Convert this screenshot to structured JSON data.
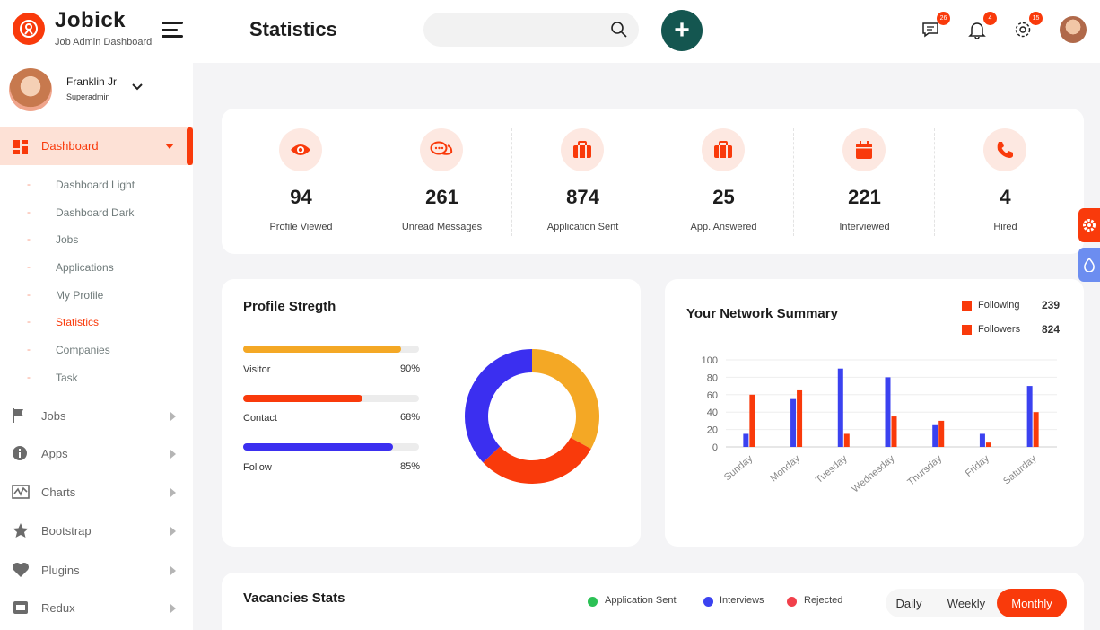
{
  "app": {
    "brand_title": "Jobick",
    "brand_subtitle": "Job Admin Dashboard",
    "page_title": "Statistics"
  },
  "header": {
    "search_placeholder": "",
    "add_label": "+",
    "icons": [
      {
        "name": "chat-icon",
        "badge": "26"
      },
      {
        "name": "bell-icon",
        "badge": "4"
      },
      {
        "name": "gear-icon",
        "badge": "15"
      }
    ]
  },
  "profile": {
    "name": "Franklin Jr",
    "role": "Superadmin"
  },
  "sidebar": {
    "active": {
      "label": "Dashboard",
      "icon": "dashboard-grid-icon"
    },
    "subitems": [
      {
        "label": "Dashboard Light",
        "active": false
      },
      {
        "label": "Dashboard Dark",
        "active": false
      },
      {
        "label": "Jobs",
        "active": false
      },
      {
        "label": "Applications",
        "active": false
      },
      {
        "label": "My Profile",
        "active": false
      },
      {
        "label": "Statistics",
        "active": true
      },
      {
        "label": "Companies",
        "active": false
      },
      {
        "label": "Task",
        "active": false
      }
    ],
    "items": [
      {
        "label": "Jobs",
        "icon": "flag-icon"
      },
      {
        "label": "Apps",
        "icon": "info-icon"
      },
      {
        "label": "Charts",
        "icon": "chart-line-icon"
      },
      {
        "label": "Bootstrap",
        "icon": "star-icon"
      },
      {
        "label": "Plugins",
        "icon": "heart-icon"
      },
      {
        "label": "Redux",
        "icon": "card-icon"
      }
    ]
  },
  "stats": [
    {
      "value": "94",
      "label": "Profile Viewed",
      "icon": "eye-icon"
    },
    {
      "value": "261",
      "label": "Unread Messages",
      "icon": "chat-bubbles-icon"
    },
    {
      "value": "874",
      "label": "Application Sent",
      "icon": "briefcase-icon"
    },
    {
      "value": "25",
      "label": "App. Answered",
      "icon": "briefcase-icon"
    },
    {
      "value": "221",
      "label": "Interviewed",
      "icon": "calendar-icon"
    },
    {
      "value": "4",
      "label": "Hired",
      "icon": "phone-icon"
    }
  ],
  "profile_strength": {
    "title": "Profile Stregth",
    "bars": [
      {
        "label": "Visitor",
        "pct": "90%",
        "value": 0.9,
        "color": "#f4a825"
      },
      {
        "label": "Contact",
        "pct": "68%",
        "value": 0.68,
        "color": "#f93a0b"
      },
      {
        "label": "Follow",
        "pct": "85%",
        "value": 0.85,
        "color": "#3b2ff0"
      }
    ],
    "donut": [
      {
        "value": 0.33,
        "color": "#f4a825"
      },
      {
        "value": 0.3,
        "color": "#f93a0b"
      },
      {
        "value": 0.37,
        "color": "#3b2ff0"
      }
    ]
  },
  "network": {
    "title": "Your Network Summary",
    "legend": [
      {
        "label": "Following",
        "value": "239"
      },
      {
        "label": "Followers",
        "value": "824"
      }
    ]
  },
  "chart_data": {
    "type": "bar",
    "categories": [
      "Sunday",
      "Monday",
      "Tuesday",
      "Wednesday",
      "Thursday",
      "Friday",
      "Saturday"
    ],
    "series": [
      {
        "values": [
          15,
          55,
          90,
          80,
          25,
          15,
          70
        ],
        "color": "#3b42f0"
      },
      {
        "values": [
          60,
          65,
          15,
          35,
          30,
          5,
          40
        ],
        "color": "#f93a0b"
      }
    ],
    "yticks": [
      "100",
      "80",
      "60",
      "40",
      "20",
      "0"
    ],
    "ylim": [
      0,
      100
    ]
  },
  "vacancies": {
    "title": "Vacancies Stats",
    "legend": [
      {
        "label": "Application Sent",
        "color": "#2bc155"
      },
      {
        "label": "Interviews",
        "color": "#3b42f0"
      },
      {
        "label": "Rejected",
        "color": "#f1404b"
      }
    ],
    "tabs": [
      {
        "label": "Daily",
        "active": false
      },
      {
        "label": "Weekly",
        "active": false
      },
      {
        "label": "Monthly",
        "active": true
      }
    ]
  }
}
